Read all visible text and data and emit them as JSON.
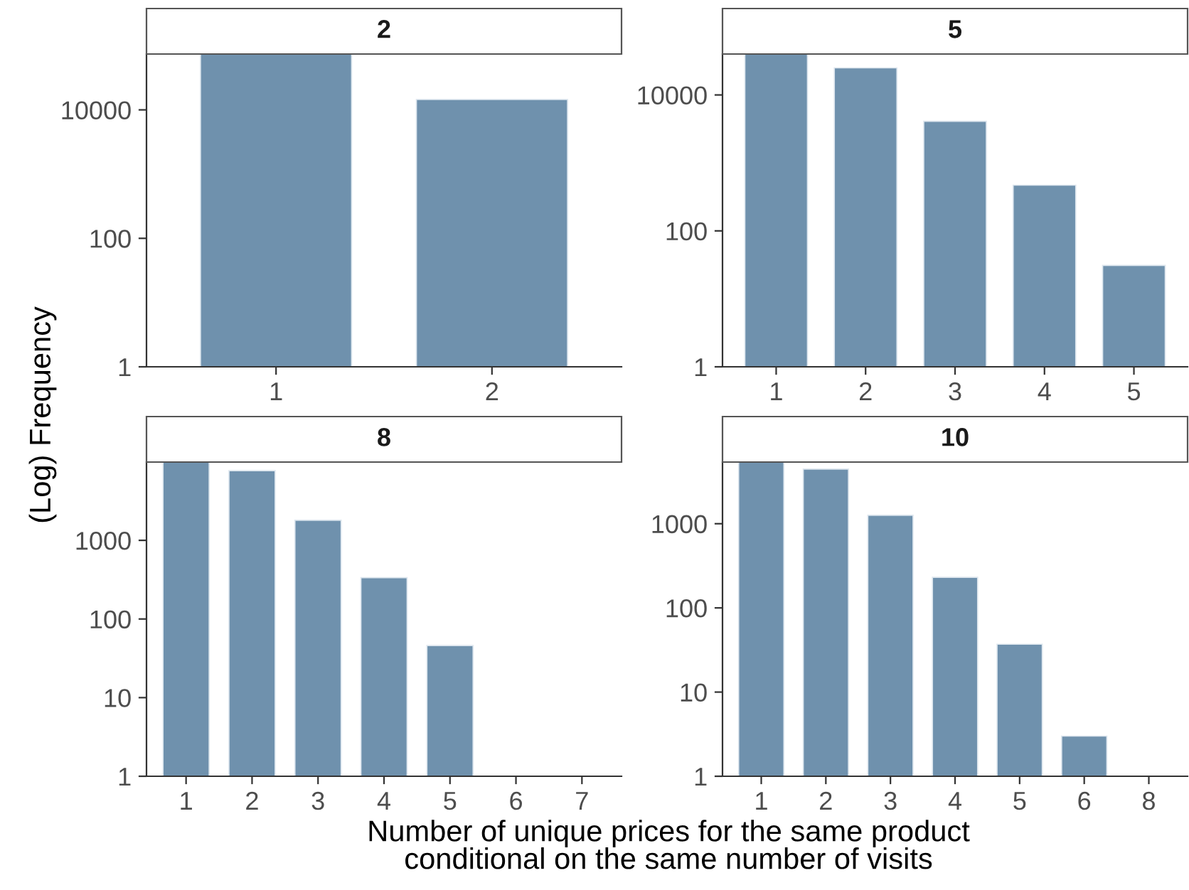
{
  "chart_data": [
    {
      "type": "bar",
      "title": "2",
      "ylabel": "(Log) Frequency",
      "categories": [
        "1",
        "2"
      ],
      "values": [
        74000,
        14500
      ],
      "color": "#6f91ad",
      "log": true,
      "ylim": [
        1,
        74000
      ],
      "yticks": [
        1,
        100,
        10000
      ],
      "grid": false,
      "legend": false
    },
    {
      "type": "bar",
      "title": "5",
      "categories": [
        "1",
        "2",
        "3",
        "4",
        "5"
      ],
      "values": [
        40000,
        25000,
        4100,
        470,
        31
      ],
      "color": "#6f91ad",
      "log": true,
      "ylim": [
        1,
        40000
      ],
      "yticks": [
        1,
        100,
        10000
      ],
      "grid": false,
      "legend": false
    },
    {
      "type": "bar",
      "title": "8",
      "xlabel": "Number of unique prices for the same product\nconditional on the same number of visits",
      "categories": [
        "1",
        "2",
        "3",
        "4",
        "5",
        "6",
        "7"
      ],
      "values": [
        9900,
        7700,
        1800,
        335,
        46,
        1,
        1
      ],
      "color": "#6f91ad",
      "log": true,
      "ylim": [
        1,
        9900
      ],
      "yticks": [
        1,
        10,
        100,
        1000
      ],
      "grid": false,
      "legend": false
    },
    {
      "type": "bar",
      "title": "10",
      "categories": [
        "1",
        "2",
        "3",
        "4",
        "5",
        "6",
        "8"
      ],
      "values": [
        5400,
        4450,
        1260,
        231,
        37,
        3,
        1
      ],
      "color": "#6f91ad",
      "log": true,
      "ylim": [
        1,
        5400
      ],
      "yticks": [
        1,
        10,
        100,
        1000
      ],
      "grid": false,
      "legend": false
    }
  ]
}
